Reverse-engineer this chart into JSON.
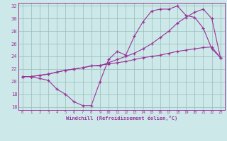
{
  "bg_color": "#cce8e8",
  "line_color": "#993399",
  "grid_color": "#99bbbb",
  "xlabel": "Windchill (Refroidissement éolien,°C)",
  "xlim": [
    -0.5,
    23.5
  ],
  "ylim": [
    15.5,
    32.5
  ],
  "xticks": [
    0,
    1,
    2,
    3,
    4,
    5,
    6,
    7,
    8,
    9,
    10,
    11,
    12,
    13,
    14,
    15,
    16,
    17,
    18,
    19,
    20,
    21,
    22,
    23
  ],
  "yticks": [
    16,
    18,
    20,
    22,
    24,
    26,
    28,
    30,
    32
  ],
  "line1_x": [
    0,
    1,
    2,
    3,
    4,
    5,
    6,
    7,
    8,
    9,
    10,
    11,
    12,
    13,
    14,
    15,
    16,
    17,
    18,
    19,
    20,
    21,
    22,
    23
  ],
  "line1_y": [
    20.8,
    20.8,
    20.5,
    20.2,
    18.8,
    18.0,
    16.8,
    16.2,
    16.2,
    20.0,
    23.5,
    24.8,
    24.2,
    27.2,
    29.5,
    31.2,
    31.5,
    31.5,
    32.0,
    30.5,
    30.2,
    28.5,
    25.2,
    23.8
  ],
  "line2_x": [
    0,
    1,
    2,
    3,
    4,
    5,
    6,
    7,
    8,
    9,
    10,
    11,
    12,
    13,
    14,
    15,
    16,
    17,
    18,
    19,
    20,
    21,
    22,
    23
  ],
  "line2_y": [
    20.8,
    20.8,
    21.0,
    21.2,
    21.5,
    21.8,
    22.0,
    22.2,
    22.5,
    22.5,
    23.0,
    23.5,
    24.0,
    24.5,
    25.2,
    26.0,
    27.0,
    28.0,
    29.3,
    30.2,
    31.0,
    31.5,
    30.0,
    23.8
  ],
  "line3_x": [
    0,
    1,
    2,
    3,
    4,
    5,
    6,
    7,
    8,
    9,
    10,
    11,
    12,
    13,
    14,
    15,
    16,
    17,
    18,
    19,
    20,
    21,
    22,
    23
  ],
  "line3_y": [
    20.8,
    20.8,
    21.0,
    21.2,
    21.5,
    21.8,
    22.0,
    22.2,
    22.5,
    22.6,
    22.8,
    23.0,
    23.2,
    23.5,
    23.8,
    24.0,
    24.2,
    24.5,
    24.8,
    25.0,
    25.2,
    25.4,
    25.5,
    23.8
  ]
}
